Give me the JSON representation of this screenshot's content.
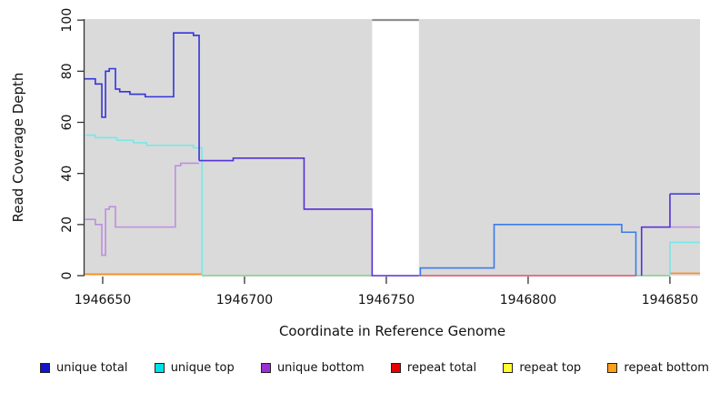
{
  "chart_data": {
    "type": "line",
    "subtype": "step-coverage",
    "title": "",
    "xlabel": "Coordinate in Reference Genome",
    "ylabel": "Read Coverage Depth",
    "xlim": [
      1946643.6,
      1946860.6
    ],
    "ylim": [
      0,
      100.4
    ],
    "x_ticks": [
      1946650,
      1946700,
      1946750,
      1946800,
      1946850
    ],
    "y_ticks": [
      0,
      20,
      40,
      60,
      80,
      100
    ],
    "grid": false,
    "legend_position": "bottom",
    "plot_bg": "#DADADA",
    "axis_color": "#333333",
    "masked_region": {
      "x0": 1946745,
      "x1": 1946761.5,
      "y0": 0,
      "y1": 100.4,
      "fill": "#FFFFFF",
      "top_border_color": "#909090"
    },
    "legend": [
      {
        "label": "unique total",
        "color": "#1414CC"
      },
      {
        "label": "unique top",
        "color": "#00E0E8"
      },
      {
        "label": "unique bottom",
        "color": "#9D2FD1"
      },
      {
        "label": "repeat total",
        "color": "#E60000"
      },
      {
        "label": "repeat top",
        "color": "#FFFF33"
      },
      {
        "label": "repeat bottom",
        "color": "#FFA018"
      }
    ],
    "series": [
      {
        "name": "repeat total",
        "legend_color": "#E60000",
        "segments": [
          {
            "color": "#DB4E6E",
            "points": [
              [
                1946762,
                0
              ],
              [
                1946838,
                0
              ]
            ]
          }
        ]
      },
      {
        "name": "repeat top",
        "legend_color": "#FFFF33",
        "note": "value 0; rendered green where it overlaps unique-top at zero",
        "segments": [
          {
            "color": "#85CB8A",
            "points": [
              [
                1946685,
                0
              ],
              [
                1946745,
                0
              ]
            ]
          },
          {
            "color": "#85CB8A",
            "points": [
              [
                1946838,
                0
              ],
              [
                1946850,
                0
              ]
            ]
          }
        ]
      },
      {
        "name": "repeat bottom",
        "legend_color": "#FFA018",
        "segments": [
          {
            "color": "#FF8C1A",
            "points": [
              [
                1946643.6,
                0.6
              ],
              [
                1946685,
                0.6
              ]
            ]
          },
          {
            "color": "#FF8C1A",
            "points": [
              [
                1946850,
                0.9
              ],
              [
                1946860.6,
                0.9
              ]
            ]
          }
        ]
      },
      {
        "name": "unique bottom",
        "legend_color": "#9D2FD1",
        "segments": [
          {
            "color": "#BE8FDF",
            "points": [
              [
                1946643.6,
                22
              ],
              [
                1946647.4,
                20
              ],
              [
                1946649.7,
                8
              ],
              [
                1946651,
                26
              ],
              [
                1946652.3,
                27
              ],
              [
                1946654.5,
                19
              ],
              [
                1946675.6,
                43
              ],
              [
                1946677.5,
                44
              ],
              [
                1946684,
                44
              ]
            ]
          },
          {
            "color": "#BE8FDF",
            "points": [
              [
                1946840,
                19
              ],
              [
                1946860.6,
                19
              ]
            ]
          }
        ]
      },
      {
        "name": "unique top",
        "legend_color": "#00E0E8",
        "segments": [
          {
            "color": "#76E8E8",
            "points": [
              [
                1946643.6,
                55
              ],
              [
                1946647.4,
                54
              ],
              [
                1946655,
                53
              ],
              [
                1946660.8,
                52
              ],
              [
                1946665.5,
                51
              ],
              [
                1946682,
                50
              ],
              [
                1946685,
                0
              ]
            ]
          },
          {
            "color": "#76E8E8",
            "points": [
              [
                1946850,
                0
              ],
              [
                1946850,
                13
              ],
              [
                1946860.6,
                13
              ]
            ]
          }
        ]
      },
      {
        "name": "unique total",
        "legend_color": "#1414CC",
        "note": "indigo segments overlap unique-bottom; azure segment overlaps unique-top",
        "segments": [
          {
            "color": "#3434D9",
            "points": [
              [
                1946643.6,
                77
              ],
              [
                1946647.4,
                75
              ],
              [
                1946649.7,
                62
              ],
              [
                1946651,
                80
              ],
              [
                1946652.3,
                81
              ],
              [
                1946654.5,
                73
              ],
              [
                1946656,
                72
              ],
              [
                1946659.6,
                71
              ],
              [
                1946665,
                70
              ],
              [
                1946675,
                95
              ],
              [
                1946682,
                94
              ],
              [
                1946684,
                45
              ]
            ]
          },
          {
            "color": "#5430D6",
            "points": [
              [
                1946684,
                45
              ],
              [
                1946696,
                46
              ],
              [
                1946721,
                26
              ],
              [
                1946745,
                0
              ],
              [
                1946761.5,
                0
              ]
            ]
          },
          {
            "color": "#3D7BE8",
            "points": [
              [
                1946761.5,
                0
              ],
              [
                1946762,
                3
              ],
              [
                1946788,
                20
              ],
              [
                1946833,
                17
              ],
              [
                1946838,
                0
              ]
            ]
          },
          {
            "color": "#5430D6",
            "points": [
              [
                1946840,
                0
              ],
              [
                1946840,
                19
              ],
              [
                1946850,
                32
              ]
            ]
          },
          {
            "color": "#3434D9",
            "points": [
              [
                1946850,
                32
              ],
              [
                1946860.6,
                32
              ]
            ]
          }
        ]
      }
    ]
  }
}
